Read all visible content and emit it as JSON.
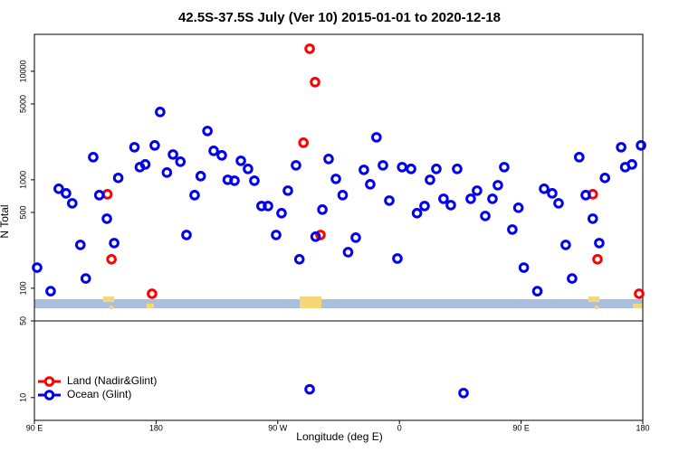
{
  "chart_data": {
    "type": "scatter",
    "title": "42.5S-37.5S July (Ver 10)   2015-01-01 to 2020-12-18",
    "x_label": "Longitude (deg E)",
    "y_label": "N Total",
    "log_scale": true,
    "legend": "lower left",
    "xlim": [
      90,
      540
    ],
    "xticks": [
      {
        "value": 90,
        "label": "90 E"
      },
      {
        "value": 180,
        "label": "180"
      },
      {
        "value": 270,
        "label": "90 W"
      },
      {
        "value": 360,
        "label": "0"
      },
      {
        "value": 450,
        "label": "90 E"
      },
      {
        "value": 540,
        "label": "180"
      }
    ],
    "ylim": [
      50,
      21900
    ],
    "yticks": [
      100,
      500,
      1000,
      5000,
      10000
    ],
    "series": [
      {
        "name": "Land (Nadir&Glint)",
        "color": "#ff0000",
        "x": [
          144,
          147,
          177,
          289,
          293.6,
          297.6,
          301.6,
          503,
          506.5,
          537.3
        ],
        "values": [
          736,
          185,
          89,
          2197,
          16140,
          7943,
          310,
          736,
          185,
          89
        ]
      },
      {
        "name": "Ocean (Glint)",
        "color": "#0000ee",
        "x": [
          92,
          102,
          108,
          113.4,
          118,
          124,
          128,
          133.5,
          138,
          143.6,
          149,
          152,
          164,
          168,
          172,
          179,
          183,
          188,
          192.5,
          198,
          202.5,
          208.5,
          213,
          218,
          222.6,
          228.6,
          233,
          238,
          242.7,
          248,
          252.7,
          258,
          262.8,
          268.8,
          272.8,
          277.5,
          283.5,
          286,
          298,
          303,
          307.6,
          313,
          318,
          322,
          327.7,
          333.7,
          338.4,
          343,
          347.8,
          352.5,
          358.5,
          362,
          368.6,
          373,
          378.6,
          382.6,
          387.3,
          392.6,
          398,
          402.7,
          412.7,
          417.4,
          423.5,
          428.8,
          432.8,
          437.5,
          443.5,
          448,
          452,
          462,
          467,
          473,
          477.7,
          483,
          487.7,
          493,
          497.8,
          503,
          507.8,
          512,
          524,
          527,
          532,
          538.7
        ],
        "values": [
          155,
          94,
          826,
          750,
          607,
          251,
          123,
          1616,
          722,
          438,
          261,
          1040,
          1995,
          1308,
          1386,
          2074,
          4217,
          1166,
          1711,
          1468,
          310,
          722,
          1080,
          2818,
          1848,
          1679,
          1000,
          981,
          1496,
          1259,
          981,
          573,
          573,
          310,
          492,
          794,
          1359,
          185,
          299,
          531,
          1555,
          1019,
          722,
          215,
          293,
          1235,
          909,
          2464,
          1359,
          643,
          188,
          1308,
          1259,
          492,
          573,
          1000,
          1259,
          668,
          584,
          1259,
          668,
          794,
          464,
          668,
          891,
          1308,
          348,
          552,
          155,
          94,
          826,
          750,
          607,
          251,
          123,
          1616,
          722,
          438,
          261,
          1040,
          1995,
          1308,
          1386,
          2074
        ]
      }
    ],
    "lower_panel": {
      "ylim": [
        6.2,
        50
      ],
      "yticks": [
        10,
        50
      ],
      "series": [
        {
          "color": "#0000ee",
          "x": [
            293.6,
            407.4
          ],
          "values": [
            11.9,
            11.0
          ]
        }
      ]
    }
  }
}
